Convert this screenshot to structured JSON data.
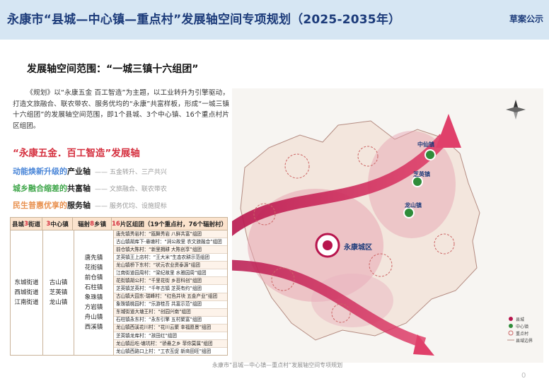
{
  "header": {
    "title": "永康市“县城—中心镇—重点村”发展轴空间专项规划（2025-2035年）",
    "tag": "草案公示"
  },
  "section_title": "发展轴空间范围：“一城三镇十六组团”",
  "intro": "《规划》以“永康五金 百工智造”为主题，以工业转升为引擎驱动，打造文旅融合、联农带农、服务优均的“永康”共富样板，形成“一城三镇十六组团”的发展轴空间范围，即1个县城、3个中心镇、16个重点村片区组团。",
  "axis": {
    "title": "“永康五金．百工智造”发展轴",
    "lines": [
      {
        "highlight": "动能焕新升级的",
        "tail": "产业轴",
        "desc": "—— 五金转升、三产共兴"
      },
      {
        "highlight": "城乡融合缩差的",
        "tail": "共富轴",
        "desc": "—— 文旅融合、联农带农"
      },
      {
        "highlight": "民生普惠优享的",
        "tail": "服务轴",
        "desc": "—— 服务优均、设施提标"
      }
    ]
  },
  "table": {
    "headers": {
      "c1_pre": "县城",
      "c1_num": "3",
      "c1_suf": "街道",
      "c2_num": "3",
      "c2_suf": "中心镇",
      "c3_pre": "辐射",
      "c3_num": "8",
      "c3_suf": "乡镇",
      "c4_num": "16",
      "c4_suf": "片区组团（19个重点村，76个辐射村）"
    },
    "streets": [
      "东城街道",
      "西城街道",
      "江南街道"
    ],
    "centers": [
      "古山镇",
      "芝英镇",
      "龙山镇"
    ],
    "towns": [
      "唐先镇",
      "花街镇",
      "前仓镇",
      "石柱镇",
      "象珠镇",
      "方岩镇",
      "舟山镇",
      "西溪镇"
    ],
    "rows": [
      "唐先镇秀岩村：“瓯舞秀岩 八鲜共富”组团",
      "古山镇胡库下-悬塘村：“涧公故里 农文旅融合”组团",
      "前仓镇大陈村：“新里拥耕 大陈创享”组团",
      "芝英镇王上店村：“王大米”生态农耕示范组团",
      "龙山镇桥下东村：“状元农业资泰源”组团",
      "江南街道园周村：“梁纪故里 水雅园周”组团",
      "花街镇胡公村：“千里花街 乡苕科创”组团",
      "芝英镇芝英村：“千年古镇 芝英有约”组团",
      "古山镇大园东-瑞峰村：“红色井块 五金产业”组团",
      "象珠镇桃园村：“乐游桂吾 共富示范”组团",
      "东城街道大塘王村：“创园兴南”组团",
      "石柱镇永东村：“永东引擎 五村聚富”组团",
      "龙山镇西溪花川村：“花川云聚 幸福愿景”组团",
      "芝英镇龙库村：“孩田红”组团",
      "龙山镇后吃-塘坑村：“骄悬之乡 菲你莫属”组团",
      "龙山镇西路口上村：“工农互促 新商田旺”组团"
    ]
  },
  "map": {
    "labels": {
      "city": "永康城区",
      "town_n": "中仙镇",
      "town_e": "芝英镇",
      "town_se": "龙山镇"
    },
    "legend": [
      "县城",
      "中心镇",
      "重点村",
      "县域边界"
    ]
  },
  "caption": "永康市“县城—中心镇—重点村”发展轴空间专项规划",
  "page_number": "0"
}
